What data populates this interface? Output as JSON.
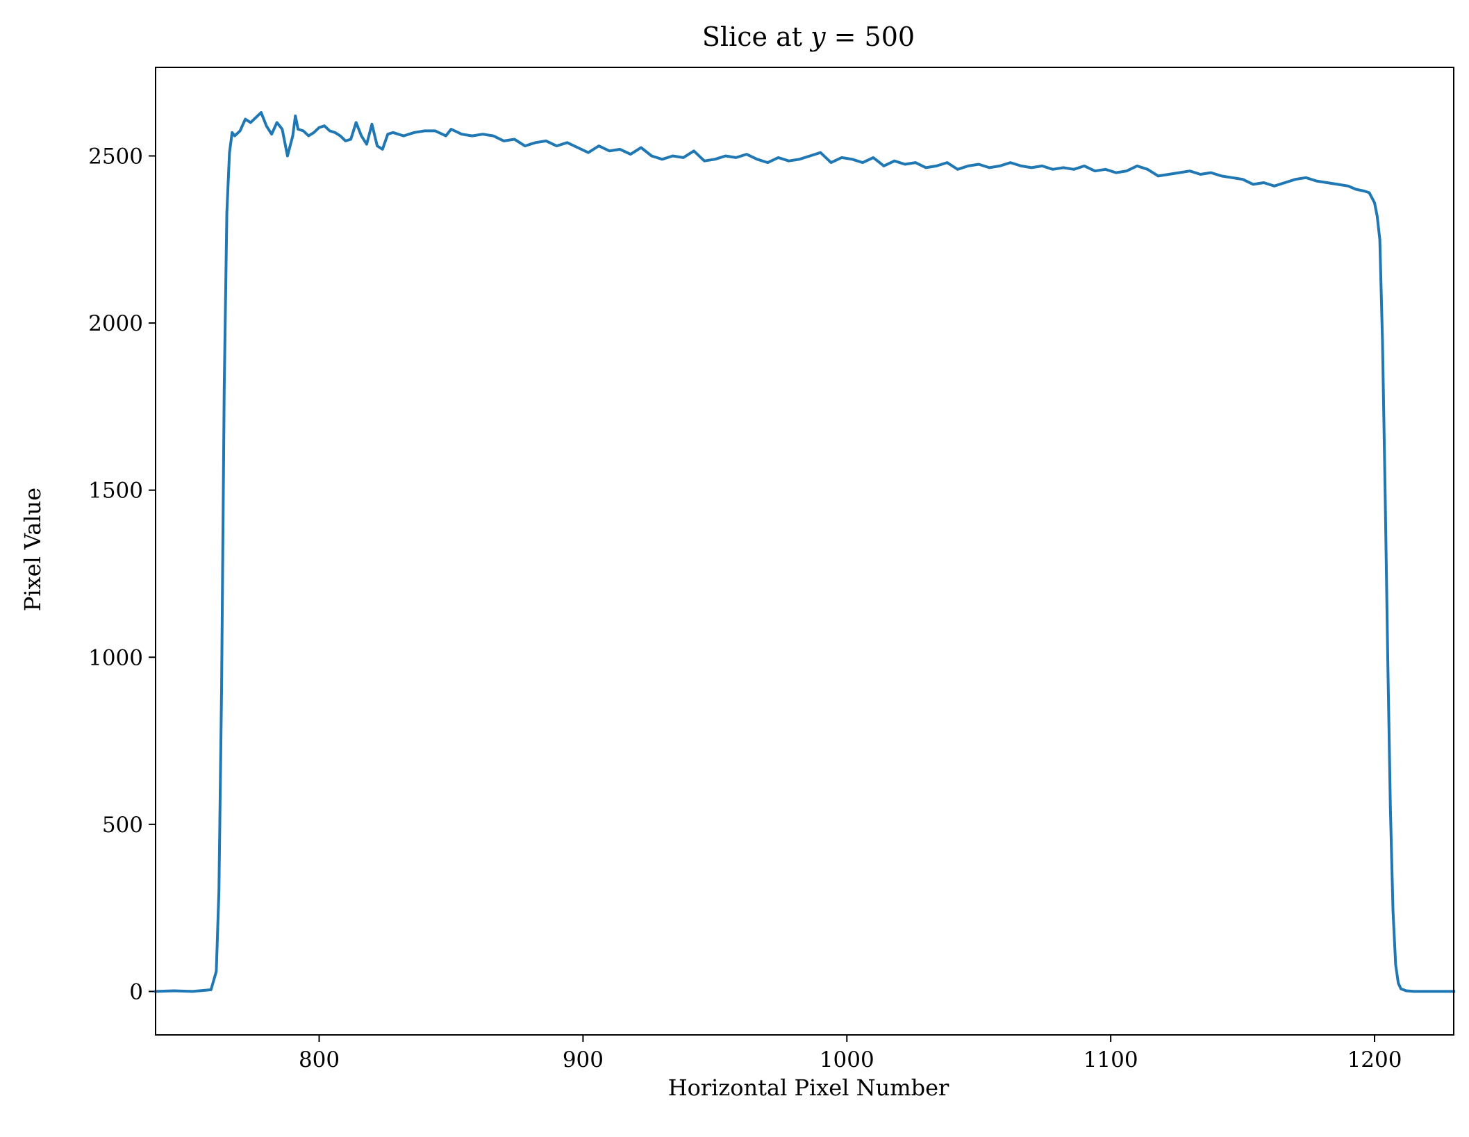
{
  "chart_data": {
    "type": "line",
    "title_prefix": "Slice at ",
    "title_var": "y",
    "title_eq": " = 500",
    "xlabel": "Horizontal Pixel Number",
    "ylabel": "Pixel Value",
    "xlim": [
      738,
      1230
    ],
    "ylim": [
      -130,
      2765
    ],
    "xticks": [
      800,
      900,
      1000,
      1100,
      1200
    ],
    "yticks": [
      0,
      500,
      1000,
      1500,
      2000,
      2500
    ],
    "grid": false,
    "series": [
      {
        "color": "#1f77b4",
        "x": [
          738,
          745,
          752,
          759,
          761,
          762,
          763,
          764,
          765,
          766,
          767,
          768,
          770,
          772,
          774,
          776,
          778,
          780,
          782,
          784,
          786,
          788,
          790,
          791,
          792,
          794,
          796,
          798,
          800,
          802,
          804,
          806,
          808,
          810,
          812,
          814,
          816,
          818,
          820,
          822,
          824,
          826,
          828,
          832,
          836,
          840,
          844,
          848,
          850,
          854,
          858,
          862,
          866,
          870,
          874,
          878,
          882,
          886,
          890,
          894,
          898,
          902,
          906,
          910,
          914,
          918,
          922,
          926,
          930,
          934,
          938,
          942,
          946,
          950,
          954,
          958,
          962,
          966,
          970,
          974,
          978,
          982,
          986,
          990,
          994,
          998,
          1002,
          1006,
          1010,
          1014,
          1018,
          1022,
          1026,
          1030,
          1034,
          1038,
          1042,
          1046,
          1050,
          1054,
          1058,
          1062,
          1066,
          1070,
          1074,
          1078,
          1082,
          1086,
          1090,
          1094,
          1098,
          1102,
          1106,
          1110,
          1114,
          1118,
          1122,
          1126,
          1130,
          1134,
          1138,
          1142,
          1146,
          1150,
          1154,
          1158,
          1162,
          1166,
          1170,
          1174,
          1178,
          1182,
          1186,
          1190,
          1193,
          1196,
          1198,
          1200,
          1201,
          1202,
          1203,
          1204,
          1205,
          1206,
          1207,
          1208,
          1209,
          1210,
          1212,
          1215,
          1220,
          1230
        ],
        "y": [
          0,
          2,
          0,
          5,
          60,
          300,
          900,
          1800,
          2330,
          2510,
          2570,
          2560,
          2575,
          2610,
          2600,
          2615,
          2630,
          2590,
          2565,
          2600,
          2580,
          2500,
          2560,
          2620,
          2580,
          2575,
          2560,
          2570,
          2585,
          2590,
          2575,
          2570,
          2560,
          2545,
          2550,
          2600,
          2560,
          2535,
          2595,
          2530,
          2520,
          2565,
          2570,
          2560,
          2570,
          2575,
          2575,
          2560,
          2580,
          2565,
          2560,
          2565,
          2560,
          2545,
          2550,
          2530,
          2540,
          2545,
          2530,
          2540,
          2525,
          2510,
          2530,
          2515,
          2520,
          2505,
          2525,
          2500,
          2490,
          2500,
          2495,
          2515,
          2485,
          2490,
          2500,
          2495,
          2505,
          2490,
          2480,
          2495,
          2485,
          2490,
          2500,
          2510,
          2480,
          2495,
          2490,
          2480,
          2495,
          2470,
          2485,
          2475,
          2480,
          2465,
          2470,
          2480,
          2460,
          2470,
          2475,
          2465,
          2470,
          2480,
          2470,
          2465,
          2470,
          2460,
          2465,
          2460,
          2470,
          2455,
          2460,
          2450,
          2455,
          2470,
          2460,
          2440,
          2445,
          2450,
          2455,
          2445,
          2450,
          2440,
          2435,
          2430,
          2415,
          2420,
          2410,
          2420,
          2430,
          2435,
          2425,
          2420,
          2415,
          2410,
          2400,
          2395,
          2390,
          2360,
          2320,
          2250,
          1950,
          1500,
          1000,
          550,
          240,
          80,
          25,
          8,
          2,
          0,
          0,
          0
        ]
      }
    ]
  }
}
